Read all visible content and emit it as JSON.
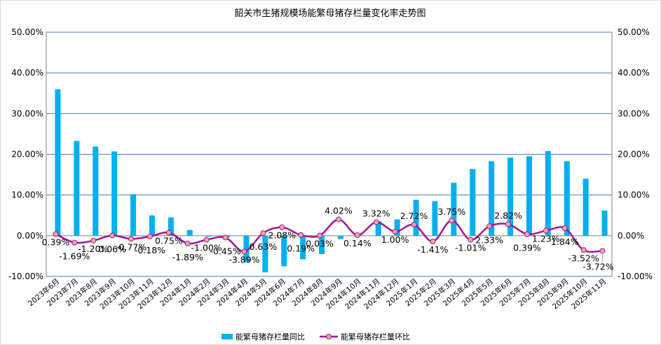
{
  "chart_data": {
    "type": "bar+line",
    "title": "韶关市生猪规模场能繁母猪存栏量变化率走势图",
    "categories": [
      "2023年6月",
      "2023年7月",
      "2023年8月",
      "2023年9月",
      "2023年10月",
      "2023年11月",
      "2023年12月",
      "2024年1月",
      "2024年2月",
      "2024年3月",
      "2024年4月",
      "2024年5月",
      "2024年6月",
      "2024年7月",
      "2024年8月",
      "2024年9月",
      "2024年10月",
      "2024年11月",
      "2024年12月",
      "2025年1月",
      "2025年2月",
      "2025年3月",
      "2025年4月",
      "2025年5月",
      "2025年6月",
      "2025年7月",
      "2025年8月",
      "2025年9月",
      "2025年10月",
      "2025年11月"
    ],
    "series": [
      {
        "name": "能繁母猪存栏量同比",
        "kind": "bar",
        "axis": "left",
        "color": "#00B0F0",
        "values": [
          36.0,
          23.3,
          21.9,
          20.7,
          10.2,
          5.0,
          4.5,
          1.4,
          -0.2,
          -0.4,
          -6.5,
          -9.0,
          -7.5,
          -5.8,
          -4.5,
          -0.8,
          0.1,
          3.6,
          4.0,
          8.8,
          8.5,
          13.0,
          16.4,
          18.3,
          19.2,
          19.5,
          20.8,
          18.3,
          14.0,
          6.2
        ]
      },
      {
        "name": "能繁母猪存栏量环比",
        "kind": "line",
        "axis": "right",
        "color": "#A0179E",
        "marker": "#F4A6A0",
        "values": [
          0.39,
          -1.69,
          -1.2,
          0.06,
          -0.77,
          -0.18,
          0.75,
          -1.89,
          -1.0,
          -0.45,
          -3.89,
          0.63,
          2.08,
          0.19,
          0.03,
          4.02,
          0.14,
          3.32,
          1.0,
          2.72,
          -1.41,
          3.75,
          -1.01,
          2.33,
          2.82,
          0.39,
          1.23,
          1.84,
          -3.52,
          -3.72
        ],
        "labels": [
          "0.39%",
          "-1.69%",
          "-1.20%",
          "0.06%",
          "-0.77%",
          "-0.18%",
          "0.75%",
          "-1.89%",
          "-1.00%",
          "-0.45%",
          "-3.89%",
          "0.63%",
          "2.08%",
          "0.19%",
          "0.03%",
          "4.02%",
          "0.14%",
          "3.32%",
          "1.00%",
          "2.72%",
          "-1.41%",
          "3.75%",
          "-1.01%",
          "2.33%",
          "2.82%",
          "0.39%",
          "1.23%",
          "1.84%",
          "-3.52%",
          "-3.72%"
        ]
      }
    ],
    "y_left": {
      "min": -10,
      "max": 50,
      "step": 10,
      "tick_labels": [
        "-10.00%",
        "0.00%",
        "10.00%",
        "20.00%",
        "30.00%",
        "40.00%",
        "50.00%"
      ]
    },
    "y_right": {
      "min": -10,
      "max": 50,
      "step": 10,
      "tick_labels": [
        "-10.00%",
        "0.00%",
        "10.00%",
        "20.00%",
        "30.00%",
        "40.00%",
        "50.00%"
      ]
    },
    "grid": true,
    "legend_position": "bottom"
  }
}
